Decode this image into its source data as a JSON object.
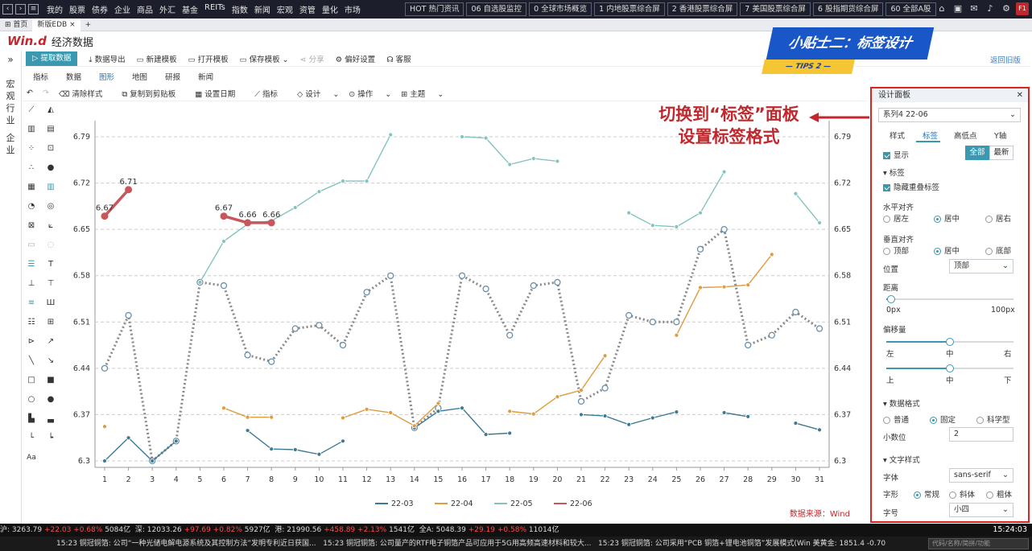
{
  "topbar": {
    "menu": [
      "我的",
      "股票",
      "债券",
      "企业",
      "商品",
      "外汇",
      "基金",
      "REITs",
      "指数",
      "新闻",
      "宏观",
      "资管",
      "量化",
      "市场"
    ],
    "quick": [
      "HOT 热门资讯",
      "06 自选股监控",
      "0 全球市场概览",
      "1 内地股票综合屏",
      "2 香港股票综合屏",
      "7 美国股票综合屏",
      "6 股指期货综合屏",
      "60 全部A股"
    ],
    "badge": "F1"
  },
  "tabs": {
    "home": "首页",
    "current": "新版EDB"
  },
  "brand": {
    "logo": "Win.d",
    "title": "经济数据"
  },
  "tip": {
    "title": "小贴士二：标签设计",
    "sub": "— TIPS 2 —"
  },
  "sidenav": {
    "expand": "»",
    "groups": [
      "宏",
      "观",
      "行",
      "业",
      "企",
      "业"
    ]
  },
  "toolbar": {
    "extract": "提取数据",
    "export": "数据导出",
    "new_tpl": "新建模板",
    "open_tpl": "打开模板",
    "save_tpl": "保存模板",
    "share": "分享",
    "prefs": "偏好设置",
    "service": "客服",
    "back_old": "返回旧版"
  },
  "subtabs": [
    "指标",
    "数据",
    "图形",
    "地图",
    "研报",
    "新闻"
  ],
  "chart_toolbar": [
    "清除样式",
    "复制到剪贴板",
    "设置日期",
    "指标",
    "设计",
    "操作",
    "主题"
  ],
  "annotation": {
    "line1": "切换到“标签”面板",
    "line2": "设置标签格式"
  },
  "panel": {
    "title": "设计面板",
    "close": "✕",
    "series": "系列4 22-06",
    "tabs": [
      "样式",
      "标签",
      "高低点",
      "Y轴"
    ],
    "show": "显示",
    "all": "全部",
    "latest": "最新",
    "label_section": "标签",
    "hide_overlap": "隐藏重叠标签",
    "h_align": "水平对齐",
    "h_opts": [
      "居左",
      "居中",
      "居右"
    ],
    "v_align": "垂直对齐",
    "v_opts": [
      "顶部",
      "居中",
      "底部"
    ],
    "position": "位置",
    "position_val": "顶部",
    "distance": "距离",
    "dist_min": "0px",
    "dist_max": "100px",
    "offset": "偏移量",
    "off_h": [
      "左",
      "中",
      "右"
    ],
    "off_v": [
      "上",
      "中",
      "下"
    ],
    "num_fmt": "数据格式",
    "num_opts": [
      "普通",
      "固定",
      "科学型"
    ],
    "decimals": "小数位",
    "decimals_val": "2",
    "text_style": "文字样式",
    "font": "字体",
    "font_val": "sans-serif",
    "weight": "字形",
    "weight_opts": [
      "常规",
      "斜体",
      "粗体"
    ],
    "size": "字号",
    "size_val": "小四"
  },
  "colors": {
    "s2203": "#3d7a94",
    "s2204": "#e09b3d",
    "s2205": "#84c4c0",
    "s2206": "#c8575c",
    "dotted": "#888888"
  },
  "chart_data": {
    "type": "line",
    "x": [
      1,
      2,
      3,
      4,
      5,
      6,
      7,
      8,
      9,
      10,
      11,
      12,
      13,
      14,
      15,
      16,
      17,
      18,
      19,
      20,
      21,
      22,
      23,
      24,
      25,
      26,
      27,
      28,
      29,
      30,
      31
    ],
    "yticks": [
      6.3,
      6.37,
      6.44,
      6.51,
      6.58,
      6.65,
      6.72,
      6.79
    ],
    "ylim": [
      6.3,
      6.79
    ],
    "series": [
      {
        "name": "22-03",
        "values": [
          6.3,
          6.335,
          6.3,
          6.33,
          null,
          null,
          6.346,
          6.318,
          6.317,
          6.31,
          6.33,
          null,
          null,
          6.35,
          6.375,
          6.38,
          6.34,
          6.342,
          null,
          null,
          6.37,
          6.368,
          6.355,
          6.365,
          6.374,
          null,
          6.373,
          6.367,
          null,
          6.357,
          6.347
        ]
      },
      {
        "name": "22-04",
        "values": [
          6.352,
          null,
          null,
          null,
          null,
          6.38,
          6.366,
          6.366,
          null,
          null,
          6.365,
          6.378,
          6.373,
          6.353,
          6.387,
          null,
          null,
          6.375,
          6.371,
          6.397,
          6.407,
          6.459,
          null,
          null,
          6.49,
          6.562,
          6.563,
          6.566,
          6.612,
          null,
          null
        ]
      },
      {
        "name": "22-05",
        "values": [
          null,
          null,
          null,
          null,
          6.57,
          6.632,
          6.658,
          6.663,
          6.683,
          6.707,
          6.723,
          6.723,
          6.793,
          null,
          null,
          6.79,
          6.788,
          6.748,
          6.757,
          6.753,
          null,
          null,
          6.675,
          6.656,
          6.654,
          6.675,
          6.737,
          null,
          null,
          6.704,
          6.66
        ]
      },
      {
        "name": "22-06",
        "values": [
          6.67,
          6.71,
          null,
          null,
          null,
          6.67,
          6.66,
          6.66,
          null,
          null,
          null,
          null,
          null,
          null,
          null,
          null,
          null,
          null,
          null,
          null,
          null,
          null,
          null,
          null,
          null,
          null,
          null,
          null,
          null,
          null,
          null
        ],
        "labels": [
          "6.67",
          "6.71",
          "6.67",
          "6.66",
          "6.66"
        ]
      },
      {
        "name": "dotted",
        "values": [
          6.44,
          6.52,
          6.3,
          6.33,
          6.57,
          6.565,
          6.46,
          6.45,
          6.5,
          6.505,
          6.475,
          6.555,
          6.58,
          6.35,
          6.38,
          6.58,
          6.56,
          6.49,
          6.565,
          6.57,
          6.39,
          6.41,
          6.52,
          6.51,
          6.51,
          6.62,
          6.65,
          6.475,
          6.49,
          6.525,
          6.5
        ]
      }
    ],
    "legend": [
      "22-03",
      "22-04",
      "22-05",
      "22-06"
    ],
    "source": "数据来源：Wind"
  },
  "ticker": {
    "text1": "沪: 3263.79",
    "v1": "+22.03",
    "p1": "+0.68%",
    "a1": "5084亿",
    "text2": "深: 12033.26",
    "v2": "+97.69",
    "p2": "+0.82%",
    "a2": "5927亿",
    "text3": "港: 21990.56",
    "v3": "+458.89",
    "p3": "+2.13%",
    "a3": "1541亿",
    "text4": "全A: 5048.39",
    "v4": "+29.19",
    "p4": "+0.58%",
    "a4": "11014亿",
    "clock": "15:24:03"
  },
  "news": {
    "items": [
      "15:23 铜冠铜箔: 公司“一种光储电解电源系统及其控制方法”发明专利近日获国...",
      "15:23 铜冠铜箔: 公司量产的RTF电子铜箔产品可应用于5G用高频高速材料和较大...",
      "15:23 铜冠铜箔: 公司采用“PCB 铜箔+锂电池铜箔”发展模式(Win  美黄金:  1851.4  -0.70"
    ],
    "search": "代码/名称/简拼/功能"
  }
}
